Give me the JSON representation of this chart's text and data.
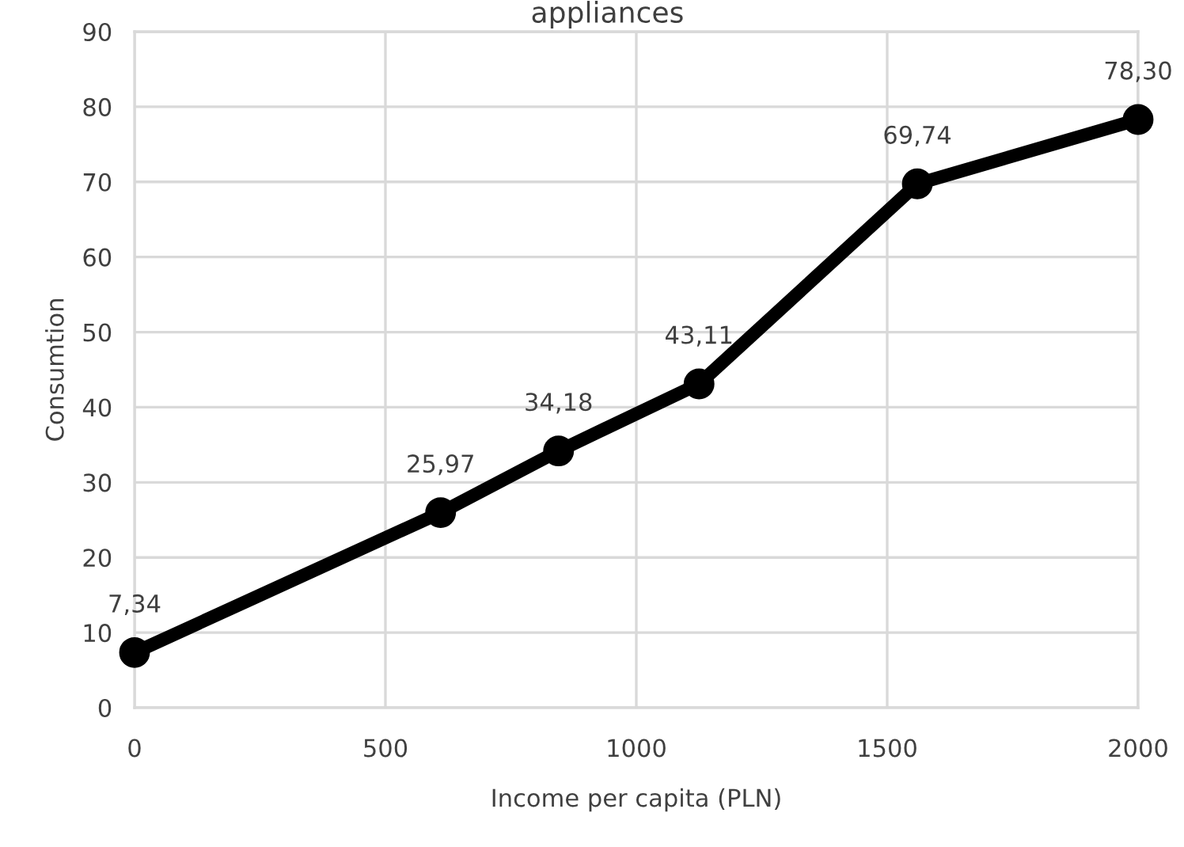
{
  "chart_data": {
    "type": "line",
    "title": "appliances",
    "xlabel": "Income per capita (PLN)",
    "ylabel": "Consumtion",
    "x": [
      0,
      610,
      845,
      1125,
      1560,
      2000
    ],
    "series": [
      {
        "color": "#000000",
        "values": [
          7.34,
          25.97,
          34.18,
          43.11,
          69.74,
          78.3
        ],
        "value_labels": [
          "7,34",
          "25,97",
          "34,18",
          "43,11",
          "69,74",
          "78,30"
        ]
      }
    ],
    "xlim": [
      0,
      2000
    ],
    "xticks": [
      0,
      500,
      1000,
      1500,
      2000
    ],
    "ylim": [
      0,
      90
    ],
    "yticks": [
      0,
      10,
      20,
      30,
      40,
      50,
      60,
      70,
      80,
      90
    ],
    "grid": true,
    "marker": "circle",
    "line_style": "solid"
  }
}
